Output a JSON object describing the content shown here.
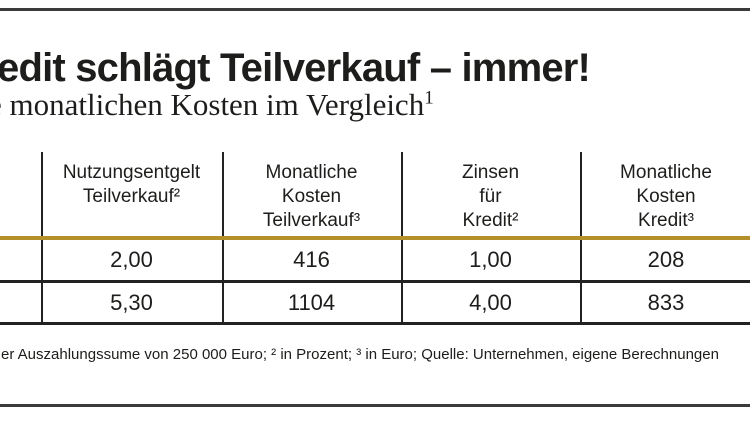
{
  "header": {
    "title": "edit schlägt Teilverkauf – immer!",
    "subtitle": "e monatlichen Kosten im Vergleich",
    "subtitle_sup": "1"
  },
  "table": {
    "columns": [
      {
        "label": "Nutzungsentgelt Teilverkauf²",
        "lines": [
          "Nutzungsentgelt",
          "Teilverkauf²"
        ]
      },
      {
        "label": "Monatliche Kosten Teilverkauf³",
        "lines": [
          "Monatliche",
          "Kosten",
          "Teilverkauf³"
        ]
      },
      {
        "label": "Zinsen für Kredit²",
        "lines": [
          "Zinsen",
          "für",
          "Kredit²"
        ]
      },
      {
        "label": "Monatliche Kosten Kredit³",
        "lines": [
          "Monatliche",
          "Kosten",
          "Kredit³"
        ]
      }
    ],
    "rows": [
      {
        "values": [
          "2,00",
          "416",
          "1,00",
          "208"
        ]
      },
      {
        "values": [
          "5,30",
          "1104",
          "4,00",
          "833"
        ]
      }
    ]
  },
  "footnote": "er Auszahlungssume von 250 000 Euro; ² in Prozent; ³ in Euro; Quelle: Unternehmen, eigene Berechnungen",
  "colors": {
    "text": "#1d1d1b",
    "gold_rule": "#b5902a",
    "table_line": "#222222",
    "page_rule": "#3a3a3a"
  },
  "chart_data": {
    "type": "table",
    "title": "edit schlägt Teilverkauf – immer!",
    "subtitle": "e monatlichen Kosten im Vergleich¹",
    "columns": [
      "Nutzungsentgelt Teilverkauf² (in Prozent)",
      "Monatliche Kosten Teilverkauf³ (in Euro)",
      "Zinsen für Kredit² (in Prozent)",
      "Monatliche Kosten Kredit³ (in Euro)"
    ],
    "rows": [
      [
        2.0,
        416,
        1.0,
        208
      ],
      [
        5.3,
        1104,
        4.0,
        833
      ]
    ],
    "footnote": "er Auszahlungssume von 250 000 Euro; ² in Prozent; ³ in Euro; Quelle: Unternehmen, eigene Berechnungen",
    "layout": "comparison table, first column cropped at left image edge, gold rule under header row"
  }
}
